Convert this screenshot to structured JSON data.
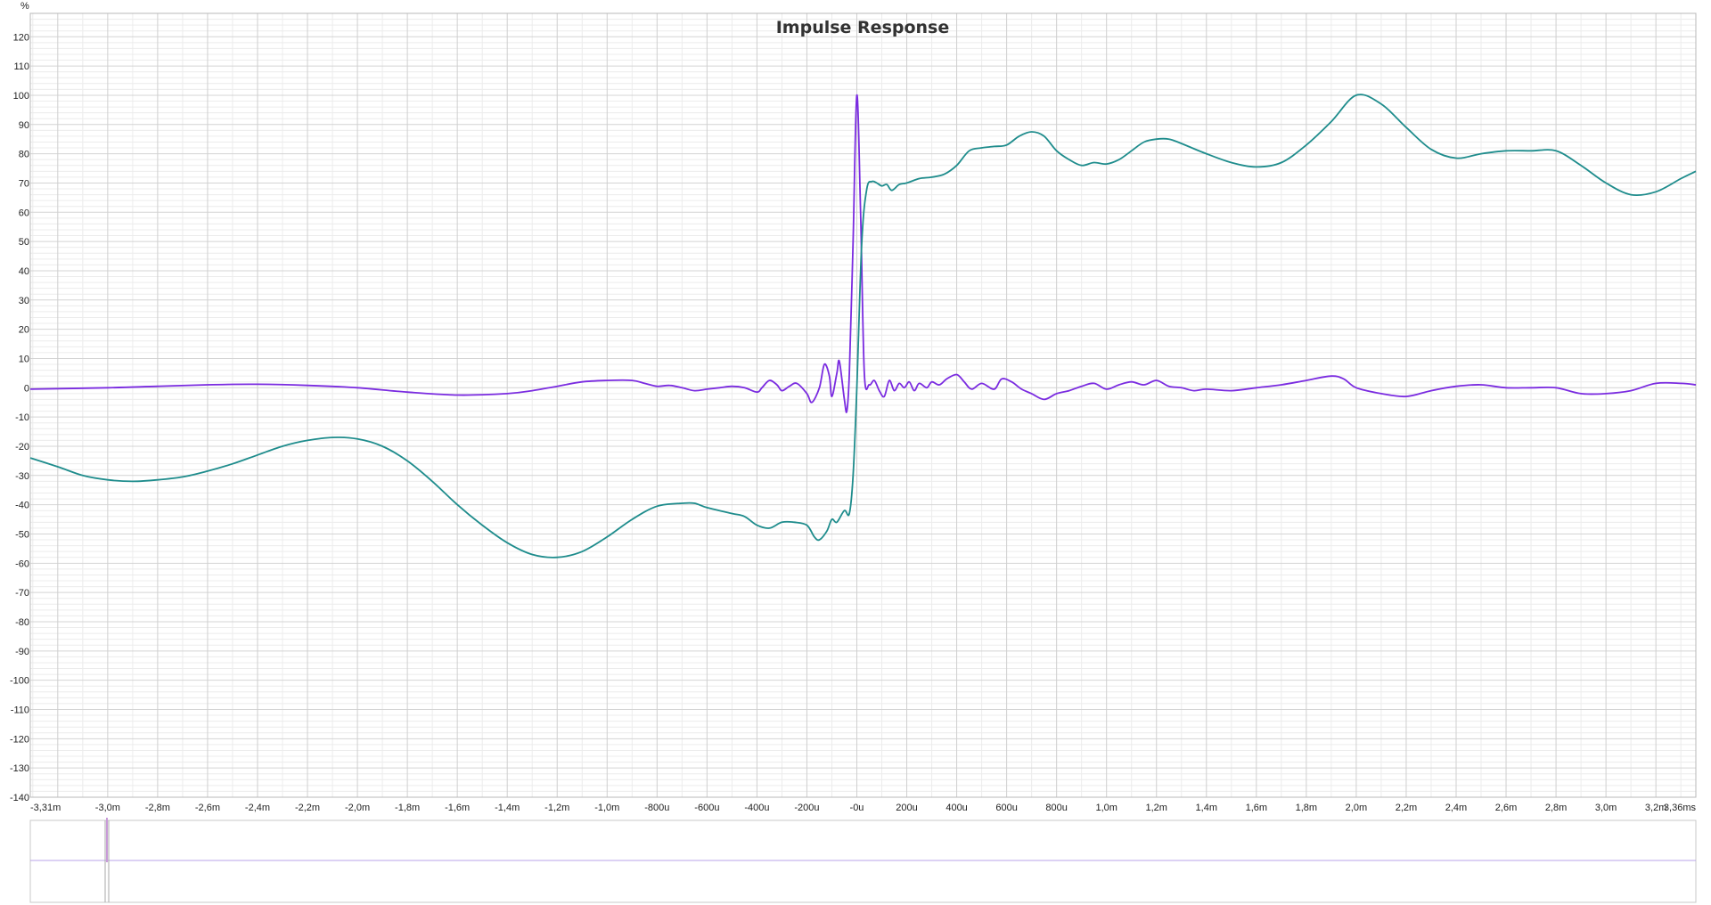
{
  "chart_data": {
    "type": "line",
    "title": "Impulse Response",
    "ylabel": "%",
    "xlabel": "",
    "xlim": [
      -3.31,
      3.36
    ],
    "ylim": [
      -140,
      128
    ],
    "grid": true,
    "x_tick_labels": [
      "-3,31m",
      "-3,0m",
      "-2,8m",
      "-2,6m",
      "-2,4m",
      "-2,2m",
      "-2,0m",
      "-1,8m",
      "-1,6m",
      "-1,4m",
      "-1,2m",
      "-1,0m",
      "-800u",
      "-600u",
      "-400u",
      "-200u",
      "-0u",
      "200u",
      "400u",
      "600u",
      "800u",
      "1,0m",
      "1,2m",
      "1,4m",
      "1,6m",
      "1,8m",
      "2,0m",
      "2,2m",
      "2,4m",
      "2,6m",
      "2,8m",
      "3,0m",
      "3,2m",
      "3,36ms"
    ],
    "y_tick_labels": [
      "120",
      "110",
      "100",
      "90",
      "80",
      "70",
      "60",
      "50",
      "40",
      "30",
      "20",
      "10",
      "0",
      "-10",
      "-20",
      "-30",
      "-40",
      "-50",
      "-60",
      "-70",
      "-80",
      "-90",
      "-100",
      "-110",
      "-120",
      "-130",
      "-140"
    ],
    "series": [
      {
        "color": "#7a2be0",
        "points": [
          [
            -3.31,
            -0.5
          ],
          [
            -3.0,
            0
          ],
          [
            -2.8,
            0.5
          ],
          [
            -2.6,
            1
          ],
          [
            -2.4,
            1.2
          ],
          [
            -2.2,
            0.8
          ],
          [
            -2.0,
            0
          ],
          [
            -1.8,
            -1.5
          ],
          [
            -1.6,
            -2.5
          ],
          [
            -1.4,
            -2
          ],
          [
            -1.3,
            -1
          ],
          [
            -1.2,
            0.5
          ],
          [
            -1.1,
            2
          ],
          [
            -1.0,
            2.5
          ],
          [
            -0.9,
            2.5
          ],
          [
            -0.85,
            1.5
          ],
          [
            -0.8,
            0.5
          ],
          [
            -0.75,
            0.8
          ],
          [
            -0.7,
            0
          ],
          [
            -0.65,
            -1
          ],
          [
            -0.6,
            -0.5
          ],
          [
            -0.55,
            0
          ],
          [
            -0.5,
            0.5
          ],
          [
            -0.45,
            0
          ],
          [
            -0.4,
            -1.5
          ],
          [
            -0.38,
            0
          ],
          [
            -0.35,
            2.5
          ],
          [
            -0.32,
            1
          ],
          [
            -0.3,
            -1
          ],
          [
            -0.27,
            0.5
          ],
          [
            -0.24,
            1.5
          ],
          [
            -0.2,
            -2
          ],
          [
            -0.18,
            -5
          ],
          [
            -0.15,
            0
          ],
          [
            -0.13,
            8
          ],
          [
            -0.11,
            4
          ],
          [
            -0.1,
            -3
          ],
          [
            -0.08,
            5
          ],
          [
            -0.07,
            9
          ],
          [
            -0.05,
            -4
          ],
          [
            -0.04,
            -8
          ],
          [
            -0.03,
            5
          ],
          [
            -0.015,
            50
          ],
          [
            0,
            100
          ],
          [
            0.015,
            60
          ],
          [
            0.03,
            5
          ],
          [
            0.05,
            1
          ],
          [
            0.07,
            2.5
          ],
          [
            0.09,
            -1
          ],
          [
            0.11,
            -3
          ],
          [
            0.13,
            2.5
          ],
          [
            0.15,
            -1
          ],
          [
            0.17,
            1.5
          ],
          [
            0.19,
            0
          ],
          [
            0.21,
            2
          ],
          [
            0.23,
            -1
          ],
          [
            0.25,
            1.5
          ],
          [
            0.28,
            0
          ],
          [
            0.3,
            2
          ],
          [
            0.33,
            1
          ],
          [
            0.36,
            3
          ],
          [
            0.4,
            4.5
          ],
          [
            0.43,
            2
          ],
          [
            0.46,
            -0.5
          ],
          [
            0.5,
            1.5
          ],
          [
            0.55,
            -0.5
          ],
          [
            0.58,
            3
          ],
          [
            0.62,
            2
          ],
          [
            0.66,
            -0.5
          ],
          [
            0.7,
            -2
          ],
          [
            0.75,
            -4
          ],
          [
            0.8,
            -2
          ],
          [
            0.85,
            -1
          ],
          [
            0.9,
            0.5
          ],
          [
            0.95,
            1.5
          ],
          [
            1.0,
            -0.5
          ],
          [
            1.05,
            1
          ],
          [
            1.1,
            2
          ],
          [
            1.15,
            1
          ],
          [
            1.2,
            2.5
          ],
          [
            1.25,
            0.5
          ],
          [
            1.3,
            0
          ],
          [
            1.35,
            -1
          ],
          [
            1.4,
            -0.5
          ],
          [
            1.5,
            -1
          ],
          [
            1.6,
            0
          ],
          [
            1.7,
            1
          ],
          [
            1.8,
            2.5
          ],
          [
            1.9,
            4
          ],
          [
            1.95,
            3
          ],
          [
            2.0,
            0
          ],
          [
            2.1,
            -2
          ],
          [
            2.2,
            -3
          ],
          [
            2.3,
            -1
          ],
          [
            2.4,
            0.5
          ],
          [
            2.5,
            1
          ],
          [
            2.6,
            0
          ],
          [
            2.7,
            0
          ],
          [
            2.8,
            0
          ],
          [
            2.9,
            -2
          ],
          [
            3.0,
            -2
          ],
          [
            3.1,
            -1
          ],
          [
            3.2,
            1.5
          ],
          [
            3.3,
            1.5
          ],
          [
            3.36,
            1
          ]
        ]
      },
      {
        "color": "#1e8c8c",
        "points": [
          [
            -3.31,
            -24
          ],
          [
            -3.2,
            -27
          ],
          [
            -3.1,
            -30
          ],
          [
            -3.0,
            -31.5
          ],
          [
            -2.9,
            -32
          ],
          [
            -2.8,
            -31.5
          ],
          [
            -2.7,
            -30.5
          ],
          [
            -2.6,
            -28.5
          ],
          [
            -2.5,
            -26
          ],
          [
            -2.4,
            -23
          ],
          [
            -2.3,
            -20
          ],
          [
            -2.2,
            -18
          ],
          [
            -2.1,
            -17
          ],
          [
            -2.0,
            -17.5
          ],
          [
            -1.9,
            -20
          ],
          [
            -1.8,
            -25
          ],
          [
            -1.7,
            -32
          ],
          [
            -1.6,
            -40
          ],
          [
            -1.5,
            -47
          ],
          [
            -1.4,
            -53
          ],
          [
            -1.3,
            -57
          ],
          [
            -1.2,
            -58
          ],
          [
            -1.1,
            -56
          ],
          [
            -1.0,
            -51
          ],
          [
            -0.9,
            -45
          ],
          [
            -0.8,
            -40.5
          ],
          [
            -0.7,
            -39.5
          ],
          [
            -0.65,
            -39.5
          ],
          [
            -0.6,
            -41
          ],
          [
            -0.5,
            -43
          ],
          [
            -0.45,
            -44
          ],
          [
            -0.4,
            -47
          ],
          [
            -0.35,
            -48
          ],
          [
            -0.3,
            -46
          ],
          [
            -0.25,
            -46
          ],
          [
            -0.2,
            -47
          ],
          [
            -0.17,
            -51
          ],
          [
            -0.15,
            -52
          ],
          [
            -0.12,
            -49
          ],
          [
            -0.1,
            -45
          ],
          [
            -0.08,
            -46
          ],
          [
            -0.05,
            -42
          ],
          [
            -0.03,
            -43
          ],
          [
            -0.015,
            -30
          ],
          [
            0,
            0
          ],
          [
            0.02,
            50
          ],
          [
            0.04,
            68
          ],
          [
            0.06,
            70.5
          ],
          [
            0.08,
            70
          ],
          [
            0.1,
            69
          ],
          [
            0.12,
            69.5
          ],
          [
            0.14,
            67.5
          ],
          [
            0.17,
            69.5
          ],
          [
            0.2,
            70
          ],
          [
            0.25,
            71.5
          ],
          [
            0.3,
            72
          ],
          [
            0.35,
            73
          ],
          [
            0.4,
            76
          ],
          [
            0.45,
            81
          ],
          [
            0.5,
            82
          ],
          [
            0.55,
            82.5
          ],
          [
            0.6,
            83
          ],
          [
            0.65,
            86
          ],
          [
            0.7,
            87.5
          ],
          [
            0.75,
            86
          ],
          [
            0.8,
            81
          ],
          [
            0.85,
            78
          ],
          [
            0.9,
            76
          ],
          [
            0.95,
            77
          ],
          [
            1.0,
            76.5
          ],
          [
            1.05,
            78
          ],
          [
            1.1,
            81
          ],
          [
            1.15,
            84
          ],
          [
            1.2,
            85
          ],
          [
            1.25,
            85
          ],
          [
            1.3,
            83.5
          ],
          [
            1.4,
            80
          ],
          [
            1.5,
            77
          ],
          [
            1.6,
            75.5
          ],
          [
            1.7,
            77
          ],
          [
            1.8,
            83
          ],
          [
            1.9,
            91
          ],
          [
            2.0,
            100
          ],
          [
            2.1,
            97
          ],
          [
            2.2,
            89
          ],
          [
            2.3,
            81.5
          ],
          [
            2.4,
            78.5
          ],
          [
            2.5,
            80
          ],
          [
            2.6,
            81
          ],
          [
            2.7,
            81
          ],
          [
            2.8,
            81
          ],
          [
            2.9,
            76
          ],
          [
            3.0,
            70
          ],
          [
            3.1,
            66
          ],
          [
            3.2,
            67
          ],
          [
            3.3,
            71.5
          ],
          [
            3.36,
            74
          ]
        ]
      }
    ],
    "overview": {
      "line_color": "#b9a3e8",
      "marker_color": "#c89ad8"
    }
  }
}
